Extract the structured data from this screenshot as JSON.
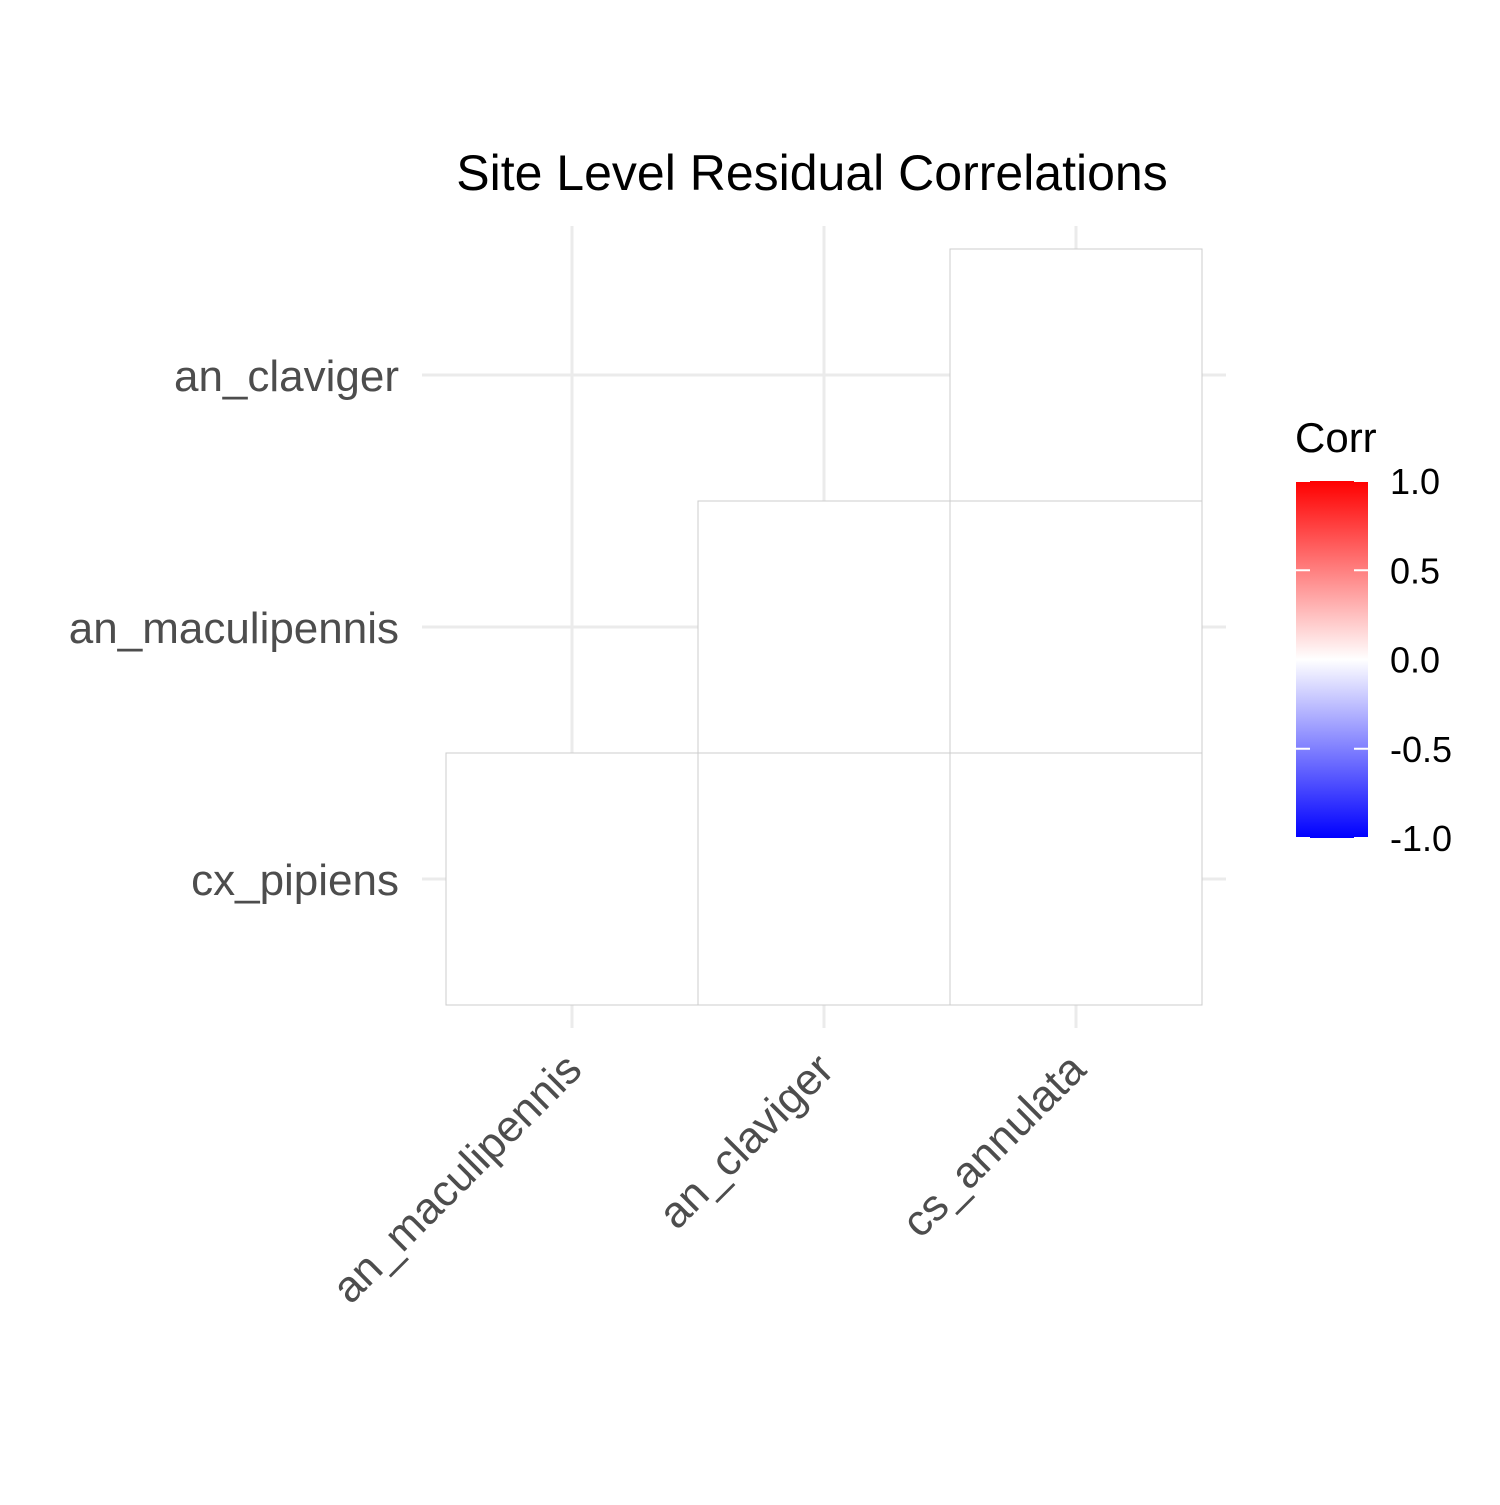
{
  "chart_data": {
    "type": "heatmap",
    "title": "Site Level Residual Correlations",
    "xlabel": "",
    "ylabel": "",
    "x_categories": [
      "an_maculipennis",
      "an_claviger",
      "cs_annulata"
    ],
    "y_categories": [
      "cx_pipiens",
      "an_maculipennis",
      "an_claviger"
    ],
    "cells": [
      {
        "x": "an_maculipennis",
        "y": "cx_pipiens",
        "value": 0.0
      },
      {
        "x": "an_claviger",
        "y": "cx_pipiens",
        "value": 0.0
      },
      {
        "x": "cs_annulata",
        "y": "cx_pipiens",
        "value": 0.0
      },
      {
        "x": "an_claviger",
        "y": "an_maculipennis",
        "value": 0.0
      },
      {
        "x": "cs_annulata",
        "y": "an_maculipennis",
        "value": 0.0
      },
      {
        "x": "cs_annulata",
        "y": "an_claviger",
        "value": 0.0
      }
    ],
    "legend": {
      "title": "Corr",
      "range": [
        -1.0,
        1.0
      ],
      "ticks": [
        1.0,
        0.5,
        0.0,
        -0.5,
        -1.0
      ],
      "tick_labels": [
        "1.0",
        "0.5",
        "0.0",
        "-0.5",
        "-1.0"
      ],
      "placement": "right",
      "colors": {
        "low": "#0000ff",
        "mid": "#ffffff",
        "high": "#ff0000"
      }
    },
    "grid": true,
    "colors": {
      "gridline": "#ebebeb",
      "tile_border": "#cccccc",
      "tick_text": "#4d4d4d"
    }
  }
}
